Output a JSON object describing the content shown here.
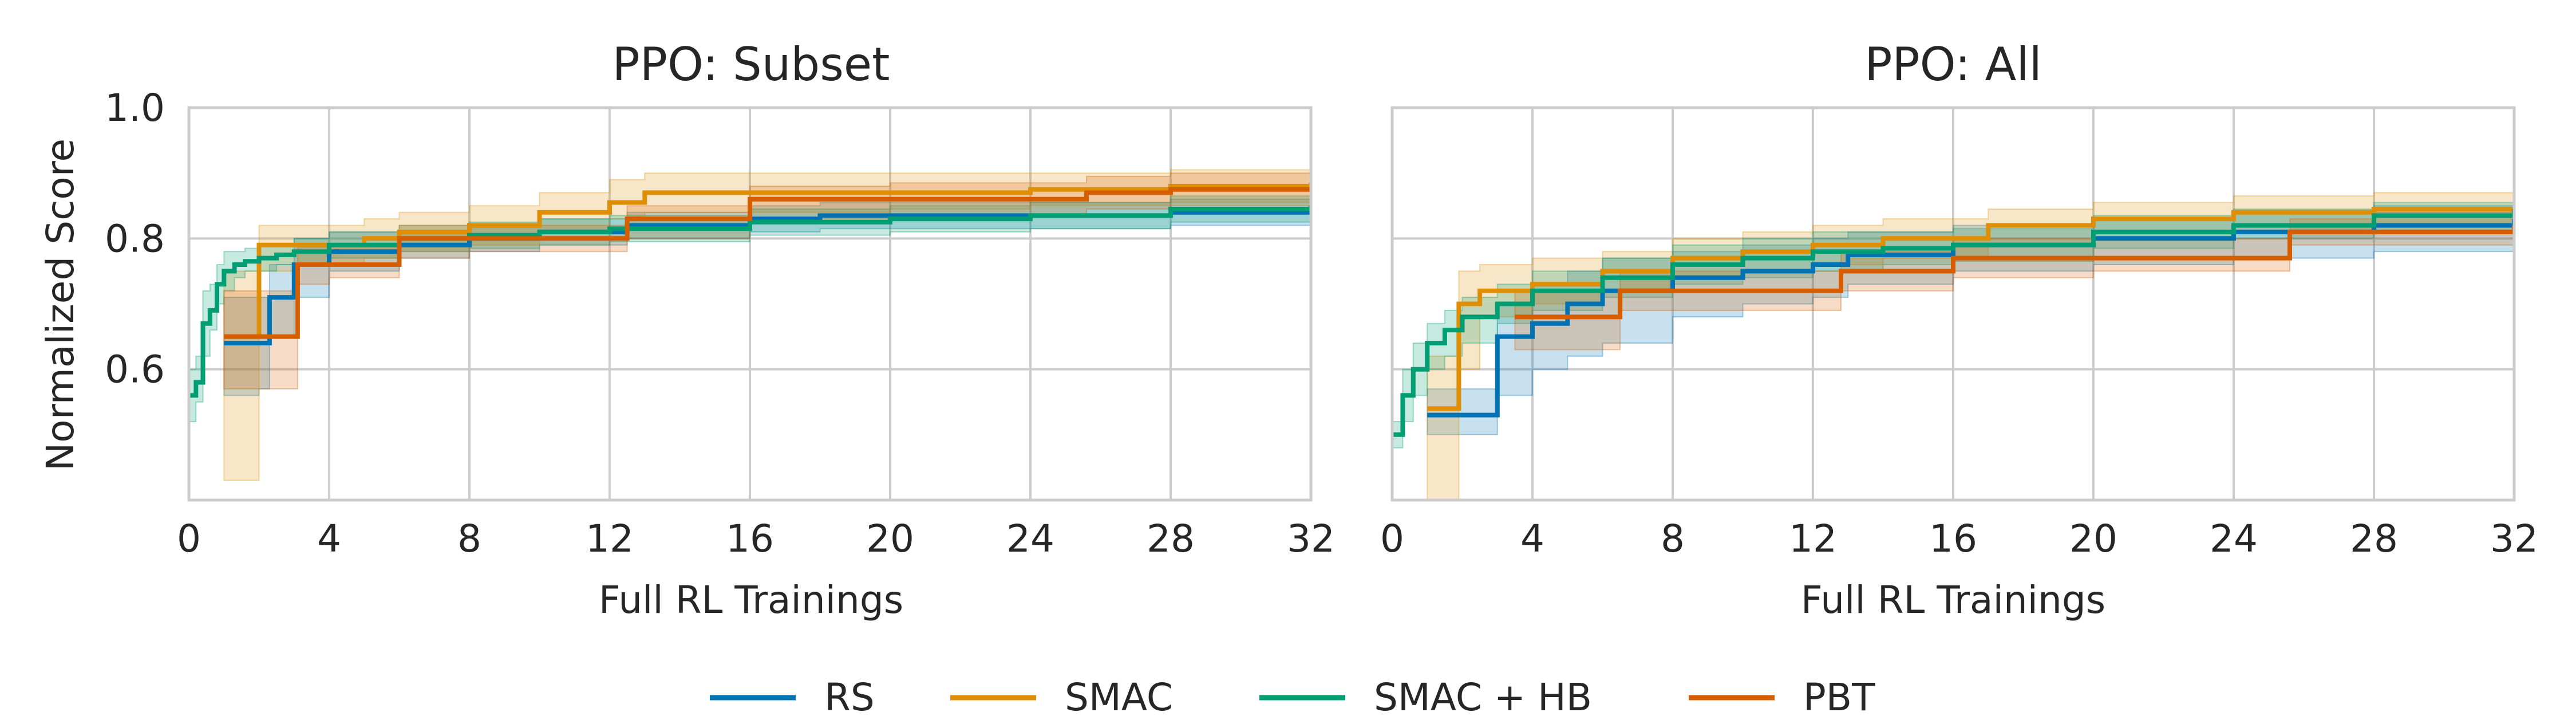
{
  "figure": {
    "legend_position": "bottom-center",
    "legend": [
      {
        "name": "RS",
        "color": "#0173b2"
      },
      {
        "name": "SMAC",
        "color": "#de8f05"
      },
      {
        "name": "SMAC + HB",
        "color": "#029e73"
      },
      {
        "name": "PBT",
        "color": "#d55e00"
      }
    ]
  },
  "chart_data": [
    {
      "type": "line",
      "style": "step",
      "title": "PPO: Subset",
      "xlabel": "Full RL Trainings",
      "ylabel": "Normalized Score",
      "xlim": [
        0,
        32
      ],
      "ylim": [
        0.4,
        1.0
      ],
      "xticks": [
        "0",
        "4",
        "8",
        "12",
        "16",
        "20",
        "24",
        "28",
        "32"
      ],
      "yticks": [
        "0.6",
        "0.8",
        "1.0"
      ],
      "grid": true,
      "series": [
        {
          "name": "RS",
          "color": "#0173b2",
          "x": [
            1,
            2,
            2.3,
            3,
            4,
            6,
            8,
            10,
            12.5,
            16,
            18,
            20,
            24,
            28,
            32
          ],
          "y": [
            0.64,
            0.64,
            0.71,
            0.76,
            0.78,
            0.79,
            0.8,
            0.81,
            0.82,
            0.83,
            0.835,
            0.835,
            0.835,
            0.84,
            0.84
          ],
          "lower": [
            0.56,
            0.57,
            0.65,
            0.71,
            0.75,
            0.77,
            0.78,
            0.79,
            0.8,
            0.81,
            0.815,
            0.815,
            0.815,
            0.82,
            0.82
          ],
          "upper": [
            0.71,
            0.71,
            0.76,
            0.8,
            0.81,
            0.81,
            0.82,
            0.83,
            0.84,
            0.85,
            0.855,
            0.855,
            0.855,
            0.86,
            0.86
          ]
        },
        {
          "name": "SMAC",
          "color": "#de8f05",
          "x": [
            1,
            2,
            3,
            5,
            6,
            8,
            10,
            12,
            13,
            16,
            20,
            24,
            28,
            32
          ],
          "y": [
            0.65,
            0.79,
            0.79,
            0.8,
            0.81,
            0.82,
            0.84,
            0.855,
            0.87,
            0.87,
            0.87,
            0.875,
            0.88,
            0.885
          ],
          "lower": [
            0.43,
            0.75,
            0.76,
            0.77,
            0.78,
            0.79,
            0.81,
            0.83,
            0.84,
            0.84,
            0.845,
            0.85,
            0.855,
            0.86
          ],
          "upper": [
            0.75,
            0.82,
            0.82,
            0.83,
            0.84,
            0.85,
            0.87,
            0.89,
            0.9,
            0.9,
            0.9,
            0.9,
            0.905,
            0.91
          ]
        },
        {
          "name": "SMAC + HB",
          "color": "#029e73",
          "x": [
            0,
            0.2,
            0.4,
            0.6,
            0.8,
            1,
            1.3,
            1.6,
            2,
            2.5,
            3,
            4,
            6,
            8,
            10,
            12,
            16,
            20,
            24,
            28,
            32
          ],
          "y": [
            0.56,
            0.58,
            0.67,
            0.69,
            0.73,
            0.75,
            0.76,
            0.765,
            0.77,
            0.775,
            0.78,
            0.79,
            0.8,
            0.805,
            0.81,
            0.815,
            0.825,
            0.83,
            0.835,
            0.845,
            0.85
          ],
          "lower": [
            0.52,
            0.55,
            0.62,
            0.66,
            0.7,
            0.72,
            0.74,
            0.75,
            0.75,
            0.76,
            0.76,
            0.77,
            0.78,
            0.785,
            0.79,
            0.795,
            0.805,
            0.81,
            0.815,
            0.825,
            0.83
          ],
          "upper": [
            0.6,
            0.62,
            0.72,
            0.73,
            0.76,
            0.78,
            0.78,
            0.785,
            0.79,
            0.79,
            0.8,
            0.81,
            0.82,
            0.825,
            0.83,
            0.835,
            0.845,
            0.85,
            0.855,
            0.865,
            0.87
          ]
        },
        {
          "name": "PBT",
          "color": "#d55e00",
          "x": [
            1,
            2,
            3.1,
            4,
            6,
            8,
            10,
            12.5,
            16,
            20,
            24,
            25.6,
            28,
            30,
            32
          ],
          "y": [
            0.65,
            0.65,
            0.76,
            0.76,
            0.8,
            0.8,
            0.8,
            0.83,
            0.86,
            0.86,
            0.86,
            0.87,
            0.875,
            0.875,
            0.875
          ],
          "lower": [
            0.57,
            0.57,
            0.73,
            0.74,
            0.77,
            0.78,
            0.78,
            0.8,
            0.83,
            0.835,
            0.835,
            0.845,
            0.85,
            0.85,
            0.85
          ],
          "upper": [
            0.72,
            0.72,
            0.79,
            0.79,
            0.82,
            0.82,
            0.82,
            0.85,
            0.88,
            0.885,
            0.885,
            0.895,
            0.9,
            0.9,
            0.9
          ]
        }
      ]
    },
    {
      "type": "line",
      "style": "step",
      "title": "PPO: All",
      "xlabel": "Full RL Trainings",
      "ylabel": "",
      "xlim": [
        0,
        32
      ],
      "ylim": [
        0.4,
        1.0
      ],
      "xticks": [
        "0",
        "4",
        "8",
        "12",
        "16",
        "20",
        "24",
        "28",
        "32"
      ],
      "yticks": [],
      "grid": true,
      "series": [
        {
          "name": "RS",
          "color": "#0173b2",
          "x": [
            1,
            2,
            3,
            4,
            5,
            6,
            8,
            10,
            12,
            13,
            16,
            20,
            24,
            28,
            32
          ],
          "y": [
            0.53,
            0.53,
            0.65,
            0.67,
            0.7,
            0.72,
            0.74,
            0.75,
            0.76,
            0.775,
            0.79,
            0.8,
            0.81,
            0.82,
            0.83
          ],
          "lower": [
            0.5,
            0.5,
            0.56,
            0.6,
            0.62,
            0.64,
            0.68,
            0.7,
            0.71,
            0.73,
            0.75,
            0.76,
            0.77,
            0.78,
            0.785
          ],
          "upper": [
            0.57,
            0.57,
            0.7,
            0.73,
            0.75,
            0.77,
            0.78,
            0.79,
            0.8,
            0.81,
            0.82,
            0.83,
            0.84,
            0.85,
            0.86
          ]
        },
        {
          "name": "SMAC",
          "color": "#de8f05",
          "x": [
            1,
            1.9,
            2.5,
            4,
            6,
            8,
            10,
            12,
            14,
            17,
            20,
            24,
            28,
            32
          ],
          "y": [
            0.54,
            0.7,
            0.72,
            0.73,
            0.75,
            0.77,
            0.78,
            0.79,
            0.8,
            0.82,
            0.83,
            0.84,
            0.845,
            0.845
          ],
          "lower": [
            0.4,
            0.6,
            0.68,
            0.7,
            0.72,
            0.74,
            0.75,
            0.76,
            0.77,
            0.79,
            0.8,
            0.81,
            0.82,
            0.82
          ],
          "upper": [
            0.62,
            0.75,
            0.76,
            0.77,
            0.78,
            0.8,
            0.81,
            0.82,
            0.83,
            0.845,
            0.855,
            0.865,
            0.87,
            0.87
          ]
        },
        {
          "name": "SMAC + HB",
          "color": "#029e73",
          "x": [
            0,
            0.3,
            0.6,
            1,
            1.5,
            2,
            3,
            4,
            6,
            8,
            10,
            12,
            14,
            16,
            20,
            24,
            28,
            32
          ],
          "y": [
            0.5,
            0.56,
            0.6,
            0.64,
            0.66,
            0.68,
            0.7,
            0.72,
            0.74,
            0.76,
            0.77,
            0.78,
            0.785,
            0.79,
            0.81,
            0.82,
            0.835,
            0.845
          ],
          "lower": [
            0.48,
            0.52,
            0.56,
            0.6,
            0.62,
            0.64,
            0.67,
            0.69,
            0.71,
            0.73,
            0.74,
            0.75,
            0.76,
            0.765,
            0.785,
            0.8,
            0.81,
            0.82
          ],
          "upper": [
            0.52,
            0.6,
            0.64,
            0.67,
            0.69,
            0.71,
            0.73,
            0.75,
            0.77,
            0.79,
            0.8,
            0.81,
            0.81,
            0.815,
            0.835,
            0.845,
            0.855,
            0.865
          ]
        },
        {
          "name": "PBT",
          "color": "#d55e00",
          "x": [
            3.5,
            6.5,
            12.8,
            16,
            20,
            25.6,
            28,
            32
          ],
          "y": [
            0.68,
            0.72,
            0.75,
            0.77,
            0.77,
            0.81,
            0.81,
            0.82
          ],
          "lower": [
            0.63,
            0.69,
            0.72,
            0.74,
            0.75,
            0.79,
            0.79,
            0.8
          ],
          "upper": [
            0.72,
            0.75,
            0.78,
            0.8,
            0.8,
            0.83,
            0.84,
            0.85
          ]
        }
      ]
    }
  ]
}
